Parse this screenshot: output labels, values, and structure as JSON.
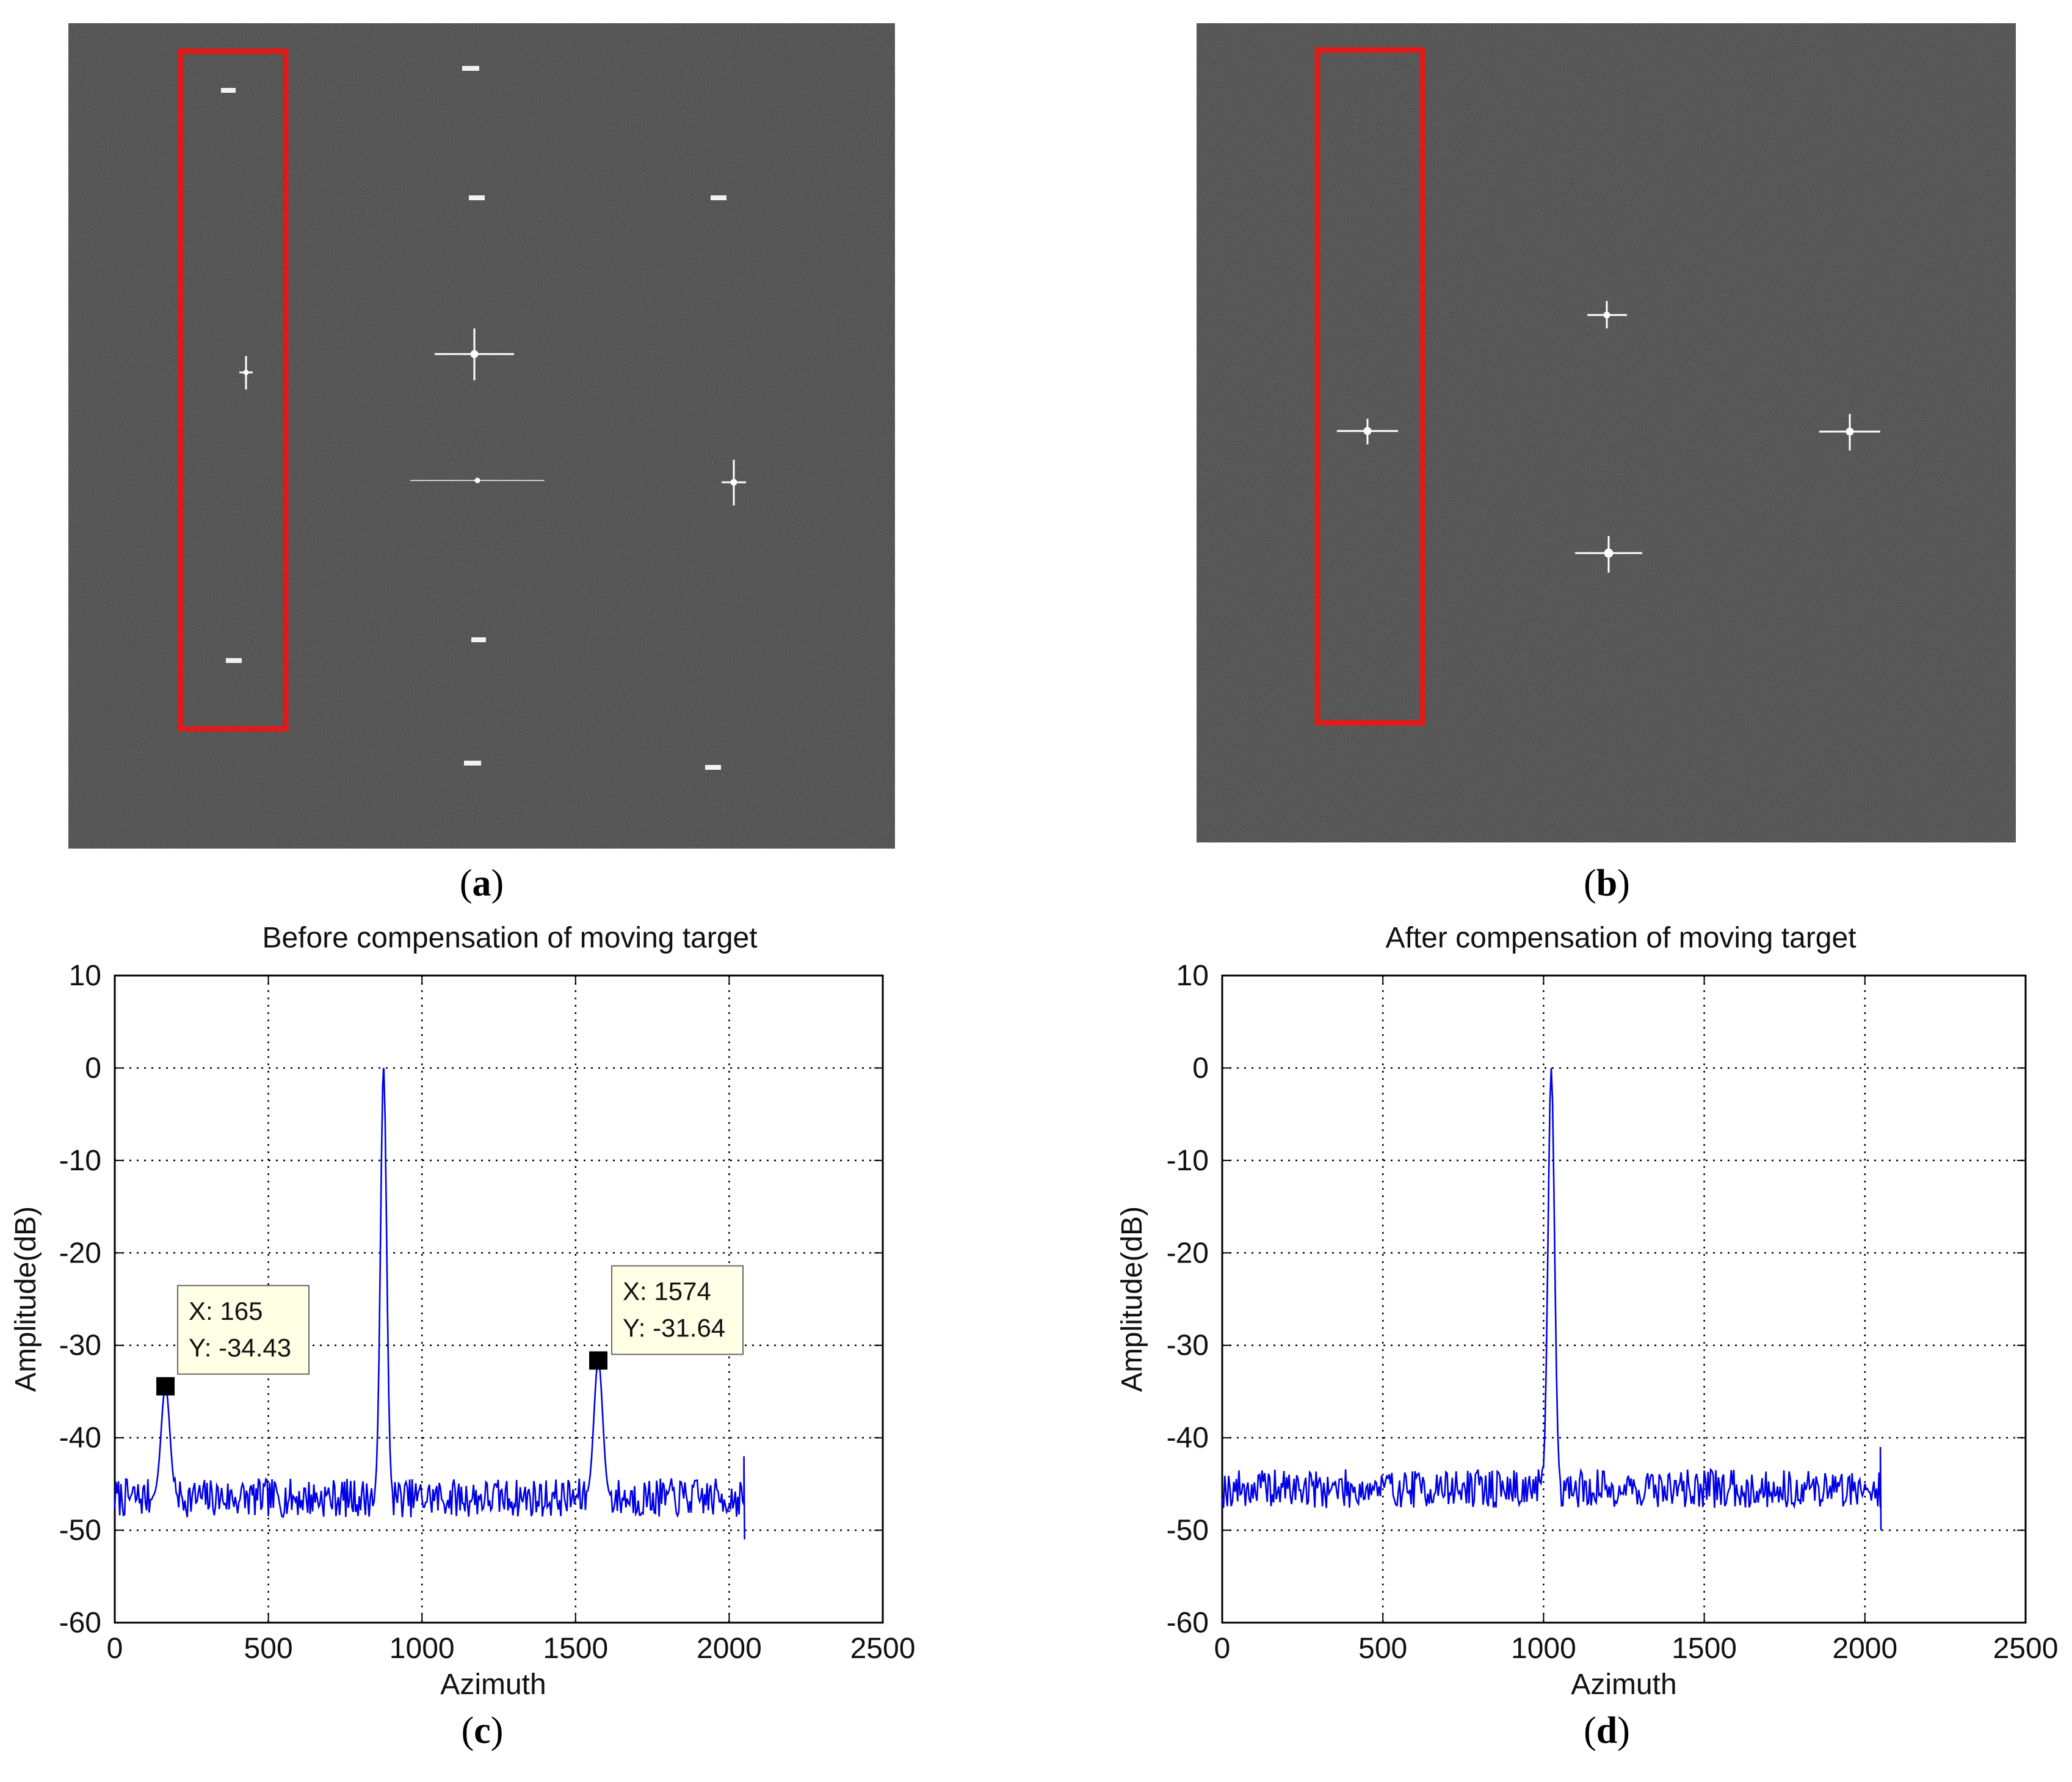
{
  "colors": {
    "sar_bg": "#3c3c3c",
    "highlight_box": "#e01919",
    "series": "#0000e6",
    "grid": "#000000",
    "datatip_bg": "#ffffe6"
  },
  "panels": {
    "a": {
      "label": "a"
    },
    "b": {
      "label": "b"
    },
    "c": {
      "label": "c"
    },
    "d": {
      "label": "d"
    }
  },
  "chart_data": [
    {
      "id": "c",
      "type": "line",
      "title": "Before compensation of moving target",
      "xlabel": "Azimuth",
      "ylabel": "Amplitude(dB)",
      "xlim": [
        0,
        2500
      ],
      "ylim": [
        -60,
        10
      ],
      "xticks": [
        0,
        500,
        1000,
        1500,
        2000,
        2500
      ],
      "yticks": [
        10,
        0,
        -10,
        -20,
        -30,
        -40,
        -50,
        -60
      ],
      "grid": true,
      "noise_floor": -46.5,
      "x_end": 2048,
      "peaks": [
        {
          "x": 165,
          "y": -34.43
        },
        {
          "x": 875,
          "y": 0
        },
        {
          "x": 1574,
          "y": -31.64
        }
      ],
      "datatips": [
        {
          "x": 165,
          "y": -34.43,
          "x_text": "X: 165",
          "y_text": "Y: -34.43"
        },
        {
          "x": 1574,
          "y": -31.64,
          "x_text": "X: 1574",
          "y_text": "Y: -31.64"
        }
      ]
    },
    {
      "id": "d",
      "type": "line",
      "title": "After compensation of moving target",
      "xlabel": "Azimuth",
      "ylabel": "Amplitude(dB)",
      "xlim": [
        0,
        2500
      ],
      "ylim": [
        -60,
        10
      ],
      "xticks": [
        0,
        500,
        1000,
        1500,
        2000,
        2500
      ],
      "yticks": [
        10,
        0,
        -10,
        -20,
        -30,
        -40,
        -50,
        -60
      ],
      "grid": true,
      "noise_floor": -45.5,
      "x_end": 2048,
      "peaks": [
        {
          "x": 1024,
          "y": 0
        }
      ],
      "datatips": []
    }
  ]
}
